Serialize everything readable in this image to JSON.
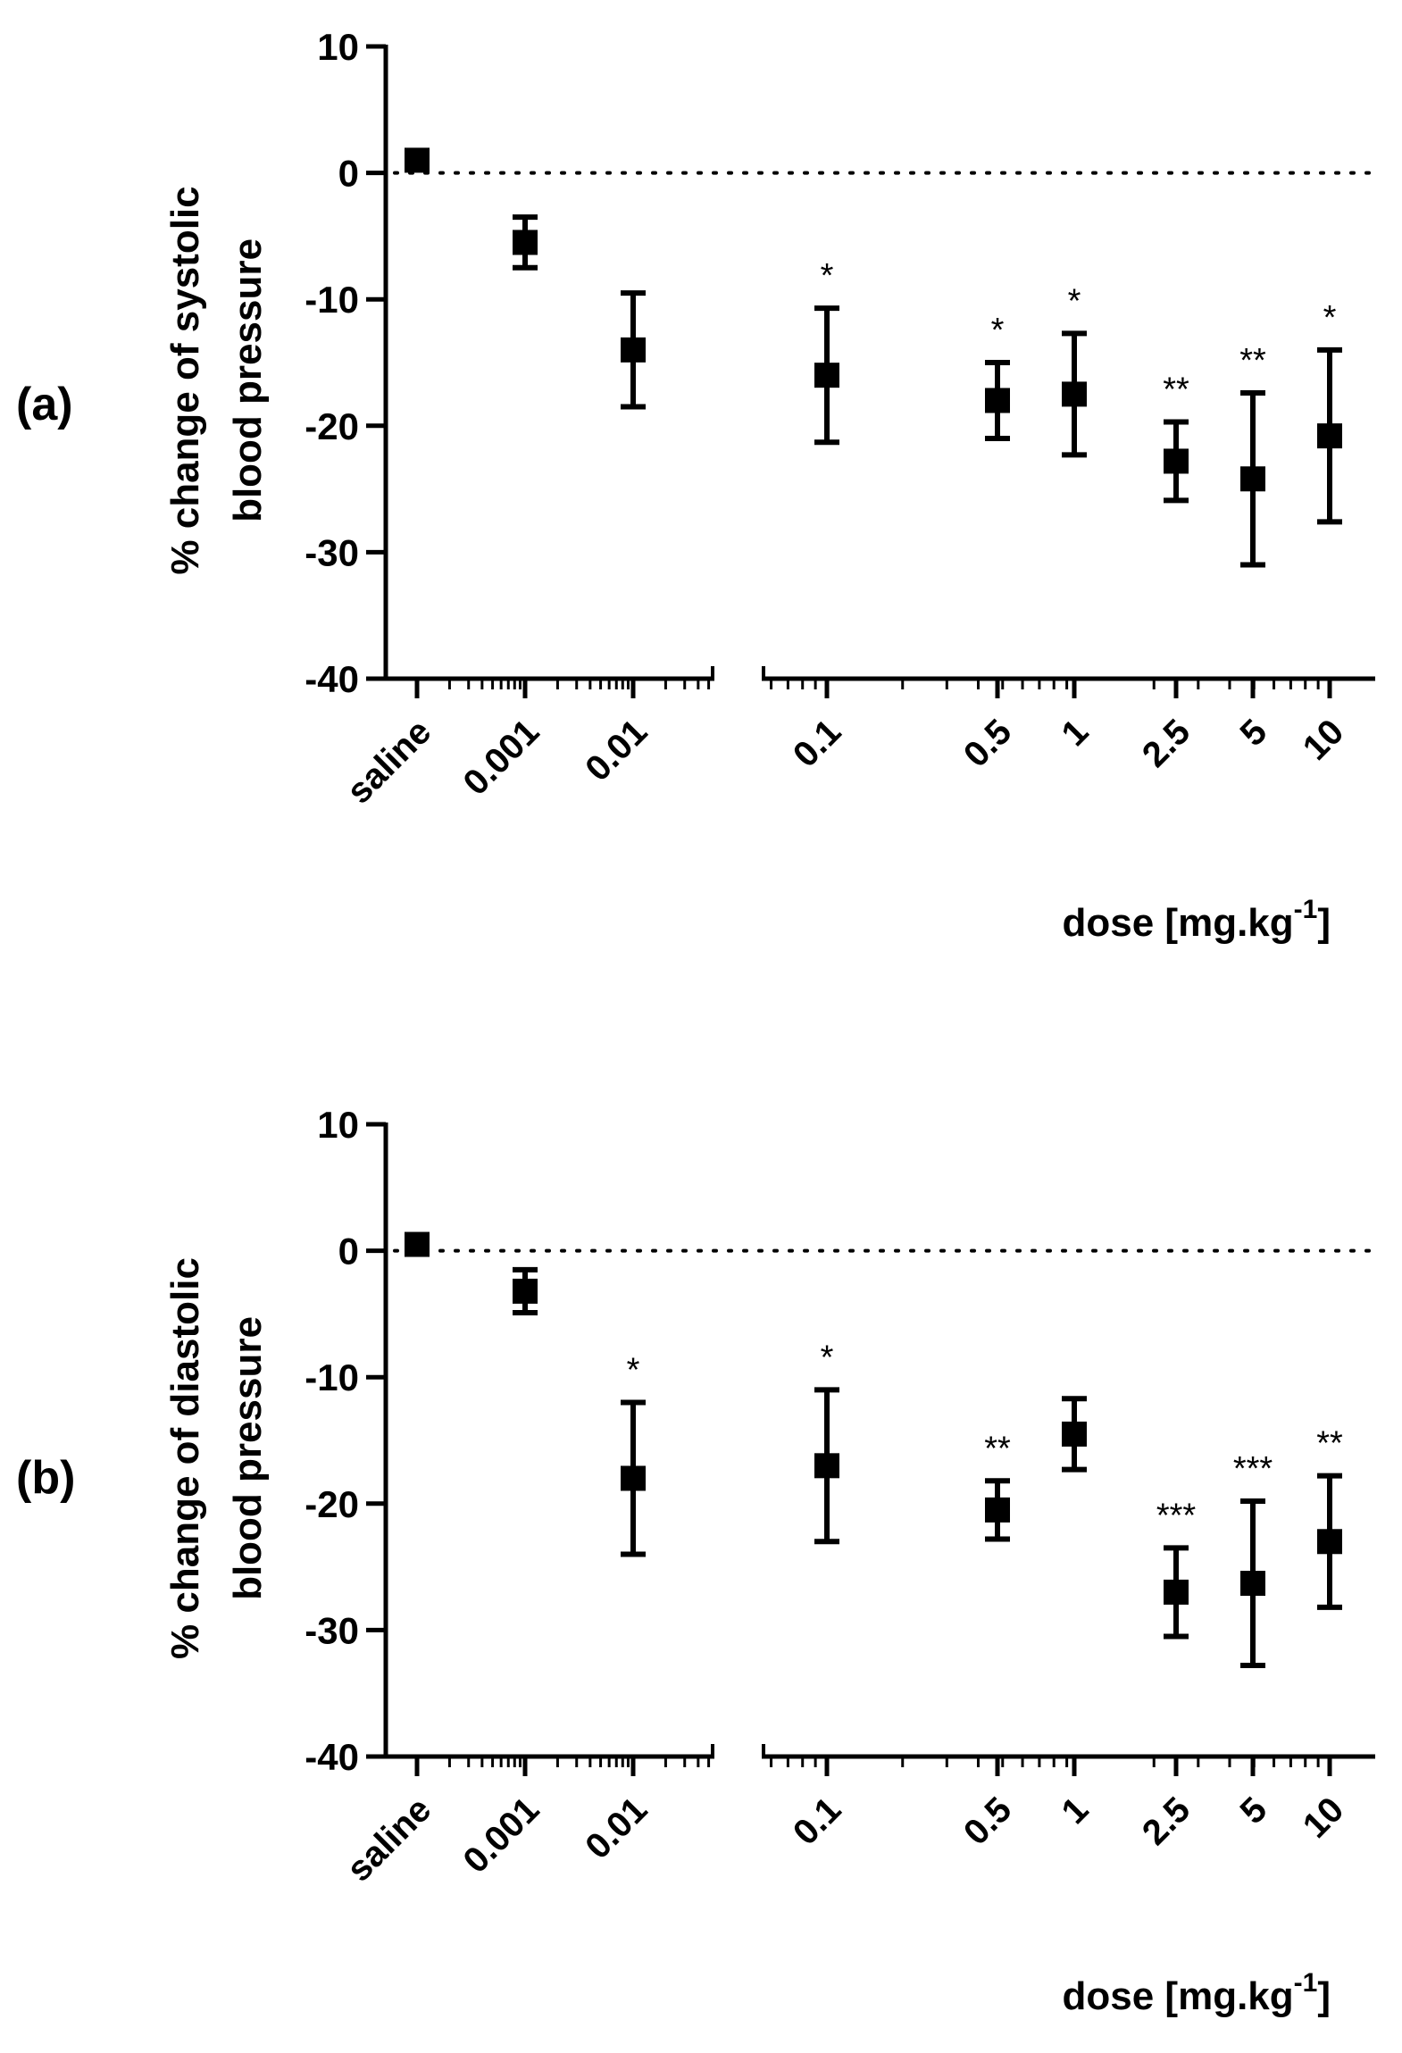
{
  "chart_data": [
    {
      "type": "scatter",
      "panel_label": "(a)",
      "ylabel_line1": "% change of systolic",
      "ylabel_line2": "blood pressure",
      "xlabel_main": "dose [mg.kg",
      "xlabel_sup": "-1",
      "xlabel_close": "]",
      "xscale": "log",
      "x_axis_break": "between 0.01 and 0.1",
      "ylim": [
        -40,
        10
      ],
      "yticks": [
        10,
        0,
        -10,
        -20,
        -30,
        -40
      ],
      "reference_line": {
        "y": 0,
        "style": "dotted"
      },
      "series": [
        {
          "name": "systolic",
          "points": [
            {
              "label": "saline",
              "y": 1,
              "err": 0,
              "sig": ""
            },
            {
              "label": "0.001",
              "y": -5.5,
              "err": 2,
              "sig": ""
            },
            {
              "label": "0.01",
              "y": -14,
              "err": 4.5,
              "sig": ""
            },
            {
              "label": "0.1",
              "y": -16,
              "err": 5.3,
              "sig": "*"
            },
            {
              "label": "0.5",
              "y": -18,
              "err": 3,
              "sig": "*"
            },
            {
              "label": "1",
              "y": -17.5,
              "err": 4.8,
              "sig": "*"
            },
            {
              "label": "2.5",
              "y": -22.8,
              "err": 3.1,
              "sig": "**"
            },
            {
              "label": "5",
              "y": -24.2,
              "err": 6.8,
              "sig": "**"
            },
            {
              "label": "10",
              "y": -20.8,
              "err": 6.8,
              "sig": "*"
            }
          ]
        }
      ]
    },
    {
      "type": "scatter",
      "panel_label": "(b)",
      "ylabel_line1": "% change of diastolic",
      "ylabel_line2": "blood pressure",
      "xlabel_main": "dose [mg.kg",
      "xlabel_sup": "-1",
      "xlabel_close": "]",
      "xscale": "log",
      "x_axis_break": "between 0.01 and 0.1",
      "ylim": [
        -40,
        10
      ],
      "yticks": [
        10,
        0,
        -10,
        -20,
        -30,
        -40
      ],
      "reference_line": {
        "y": 0,
        "style": "dotted"
      },
      "series": [
        {
          "name": "diastolic",
          "points": [
            {
              "label": "saline",
              "y": 0.5,
              "err": 0,
              "sig": ""
            },
            {
              "label": "0.001",
              "y": -3.2,
              "err": 1.7,
              "sig": ""
            },
            {
              "label": "0.01",
              "y": -18,
              "err": 6,
              "sig": "*"
            },
            {
              "label": "0.1",
              "y": -17,
              "err": 6,
              "sig": "*"
            },
            {
              "label": "0.5",
              "y": -20.5,
              "err": 2.3,
              "sig": "**"
            },
            {
              "label": "1",
              "y": -14.5,
              "err": 2.8,
              "sig": ""
            },
            {
              "label": "2.5",
              "y": -27,
              "err": 3.5,
              "sig": "***"
            },
            {
              "label": "5",
              "y": -26.3,
              "err": 6.5,
              "sig": "***"
            },
            {
              "label": "10",
              "y": -23,
              "err": 5.2,
              "sig": "**"
            }
          ]
        }
      ]
    }
  ]
}
